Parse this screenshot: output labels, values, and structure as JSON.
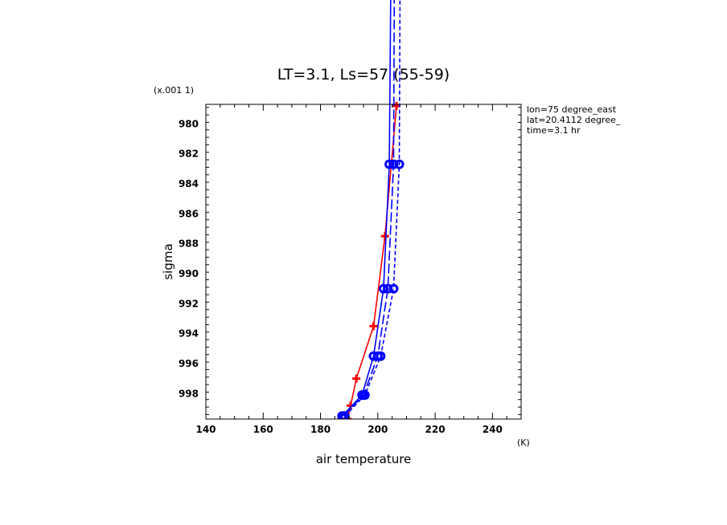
{
  "chart_data": {
    "type": "line",
    "title": "LT=3.1, Ls=57 (55-59)",
    "xlabel": "air temperature",
    "xunit": "(K)",
    "ylabel": "sigma",
    "yscale_label": "(x.001 1)",
    "annotations": [
      "lon=75 degree_east",
      "lat=20.4112 degree_",
      "time=3.1 hr"
    ],
    "xlim": [
      140,
      250
    ],
    "ylim": [
      999.7,
      978.7
    ],
    "y_inverted": true,
    "xticks": [
      140,
      160,
      180,
      200,
      220,
      240
    ],
    "yticks": [
      980,
      982,
      984,
      986,
      988,
      990,
      992,
      994,
      996,
      998
    ],
    "colors": {
      "red": "#ff0000",
      "blue": "#0000ff"
    },
    "series": [
      {
        "color": "#ff0000",
        "style": "solid",
        "marker": "plus",
        "x": [
          189.5,
          190.5,
          192.5,
          198.5,
          202.5,
          206.5
        ],
        "y": [
          999.7,
          998.8,
          997.0,
          993.5,
          987.5,
          978.8
        ]
      },
      {
        "color": "#0000ff",
        "style": "solid",
        "marker": "circle",
        "x": [
          187.5,
          194.5,
          198.5,
          202.0,
          204.0,
          205.0
        ],
        "y": [
          999.5,
          998.1,
          995.5,
          991.0,
          982.7,
          960.0
        ]
      },
      {
        "color": "#0000ff",
        "style": "long-dash",
        "marker": "circle",
        "x": [
          188.0,
          195.0,
          200.0,
          203.5,
          205.5,
          206.0
        ],
        "y": [
          999.5,
          998.1,
          995.5,
          991.0,
          982.7,
          960.0
        ]
      },
      {
        "color": "#0000ff",
        "style": "short-dash",
        "marker": "circle",
        "x": [
          188.5,
          195.5,
          201.0,
          205.5,
          207.5,
          208.0
        ],
        "y": [
          999.5,
          998.1,
          995.5,
          991.0,
          982.7,
          960.0
        ]
      }
    ]
  }
}
